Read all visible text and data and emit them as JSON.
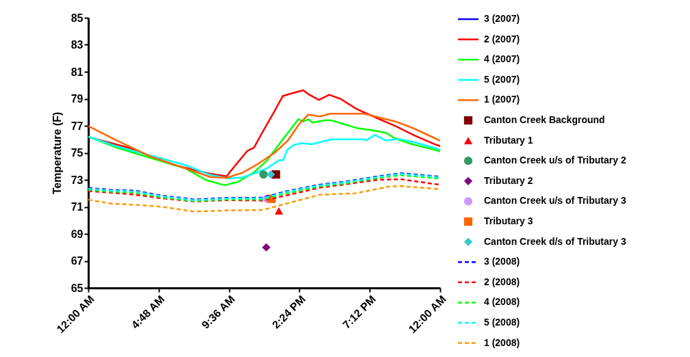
{
  "chart_data": {
    "type": "line",
    "ylabel": "Temperature (F)",
    "xlim": [
      0,
      24
    ],
    "ylim": [
      65,
      85
    ],
    "xticks": [
      {
        "value": 0,
        "label": "12:00 AM"
      },
      {
        "value": 4.8,
        "label": "4:48 AM"
      },
      {
        "value": 9.6,
        "label": "9:36 AM"
      },
      {
        "value": 14.4,
        "label": "2:24 PM"
      },
      {
        "value": 19.2,
        "label": "7:12 PM"
      },
      {
        "value": 24,
        "label": "12:00 AM"
      }
    ],
    "yticks": [
      65,
      67,
      69,
      71,
      73,
      75,
      77,
      79,
      81,
      83,
      85
    ],
    "grid": false,
    "legend": "right",
    "series": [
      {
        "name": "3 (2007)",
        "line_style": "solid",
        "color": "#0000ff"
      },
      {
        "name": "2 (2007)",
        "line_style": "solid",
        "color": "#ff0000",
        "x": [
          0,
          2.75,
          5.85,
          8.35,
          9.43,
          10.0,
          10.83,
          11.3,
          11.76,
          12.7,
          13.26,
          13.96,
          14.66,
          15.0,
          15.73,
          16.43,
          17.2,
          18.3,
          19.7,
          20.96,
          22.2,
          23.76,
          24
        ],
        "values": [
          76.17,
          75.38,
          74.1,
          73.45,
          73.27,
          74.03,
          75.13,
          75.38,
          76.3,
          78.08,
          79.2,
          79.43,
          79.63,
          79.35,
          78.92,
          79.3,
          79.0,
          78.25,
          77.57,
          76.98,
          76.31,
          75.58,
          75.5
        ]
      },
      {
        "name": "4 (2007)",
        "line_style": "solid",
        "color": "#00ff00",
        "x": [
          0,
          1.96,
          4.3,
          6.6,
          8.0,
          9.3,
          10.2,
          11.3,
          12.2,
          13.3,
          13.8,
          14.33,
          14.66,
          15.0,
          15.3,
          16.1,
          16.6,
          18.3,
          19.55,
          20.3,
          20.96,
          21.9,
          23.8,
          24
        ],
        "values": [
          76.2,
          75.38,
          74.6,
          73.86,
          73.0,
          72.6,
          72.85,
          73.55,
          74.45,
          76.05,
          76.73,
          77.49,
          77.32,
          77.49,
          77.24,
          77.4,
          77.4,
          76.84,
          76.64,
          76.48,
          76.05,
          75.7,
          75.17,
          75.1
        ]
      },
      {
        "name": "5 (2007)",
        "line_style": "solid",
        "color": "#00ffff",
        "x": [
          0,
          1.96,
          4.3,
          6.6,
          8.35,
          9.6,
          10.5,
          11.45,
          12.2,
          13.0,
          13.3,
          13.55,
          14.0,
          14.6,
          15.2,
          16.6,
          18.8,
          18.95,
          19.55,
          20.3,
          21.25,
          22.2,
          23.8,
          24
        ],
        "values": [
          76.2,
          75.47,
          74.79,
          74.1,
          73.35,
          73.1,
          73.18,
          73.52,
          73.86,
          74.45,
          74.45,
          75.2,
          75.58,
          75.72,
          75.63,
          76.0,
          76.0,
          75.93,
          76.32,
          75.92,
          76.02,
          75.8,
          75.3,
          75.2
        ]
      },
      {
        "name": "1 (2007)",
        "line_style": "solid",
        "color": "#ff6600",
        "x": [
          0,
          1.96,
          4.3,
          6.6,
          8.35,
          9.43,
          10.5,
          11.6,
          12.7,
          13.6,
          14.4,
          15.0,
          15.8,
          16.5,
          18.8,
          19.7,
          20.96,
          22.2,
          23.8,
          24
        ],
        "values": [
          76.98,
          75.9,
          74.7,
          73.86,
          73.2,
          73.15,
          73.52,
          74.2,
          75.0,
          75.9,
          77.15,
          77.83,
          77.69,
          77.9,
          77.9,
          77.66,
          77.32,
          76.81,
          76.0,
          75.9
        ]
      },
      {
        "name": "Canton Creek Background",
        "type": "scatter",
        "marker": "square",
        "color": "#800000",
        "x": [
          12.8
        ],
        "values": [
          73.4
        ]
      },
      {
        "name": "Tributary 1",
        "type": "scatter",
        "marker": "triangle",
        "color": "#ff0000",
        "x": [
          13.0
        ],
        "values": [
          70.7
        ]
      },
      {
        "name": "Canton Creek u/s of Tributary 2",
        "type": "scatter",
        "marker": "circle",
        "color": "#339966",
        "x": [
          11.95
        ],
        "values": [
          73.4
        ]
      },
      {
        "name": "Tributary 2",
        "type": "scatter",
        "marker": "diamond",
        "color": "#800080",
        "x": [
          12.14
        ],
        "values": [
          68.0
        ]
      },
      {
        "name": "Canton Creek u/s of Tributary 3",
        "type": "scatter",
        "marker": "circle",
        "color": "#cc99ff",
        "x": [
          12.2
        ],
        "values": [
          71.6
        ]
      },
      {
        "name": "Tributary 3",
        "type": "scatter",
        "marker": "square",
        "color": "#ff6600",
        "x": [
          12.5
        ],
        "values": [
          71.6
        ]
      },
      {
        "name": "Canton Creek d/s of Tributary 3",
        "type": "scatter",
        "marker": "diamond",
        "color": "#33cccc",
        "x": [
          12.45
        ],
        "values": [
          73.4
        ]
      },
      {
        "name": "3 (2008)",
        "line_style": "dashed",
        "color": "#0000ff",
        "x": [
          0,
          1.6,
          3.2,
          4.9,
          7.2,
          9.5,
          11.9,
          13.5,
          15.8,
          17.4,
          19.7,
          21.3,
          23.7,
          24
        ],
        "values": [
          72.4,
          72.25,
          72.2,
          71.85,
          71.55,
          71.67,
          71.68,
          72.15,
          72.65,
          72.85,
          73.25,
          73.49,
          73.27,
          73.25
        ]
      },
      {
        "name": "2 (2008)",
        "line_style": "dashed",
        "color": "#ff0000",
        "x": [
          0,
          1.6,
          3.2,
          4.9,
          7.2,
          9.5,
          11.9,
          13.5,
          15.8,
          17.4,
          19.7,
          21.3,
          23.7,
          24
        ],
        "values": [
          72.17,
          72.05,
          71.9,
          71.65,
          71.4,
          71.5,
          71.47,
          71.84,
          72.43,
          72.65,
          73.0,
          73.05,
          72.68,
          72.65
        ]
      },
      {
        "name": "4 (2008)",
        "line_style": "dashed",
        "color": "#00ff00",
        "x": [
          0,
          1.6,
          3.2,
          4.9,
          7.2,
          9.5,
          11.9,
          13.5,
          15.8,
          17.4,
          19.7,
          21.3,
          23.7,
          24
        ],
        "values": [
          72.25,
          72.12,
          72.05,
          71.72,
          71.43,
          71.55,
          71.55,
          72.0,
          72.52,
          72.72,
          73.12,
          73.35,
          73.12,
          73.1
        ]
      },
      {
        "name": "5 (2008)",
        "line_style": "dashed",
        "color": "#00ffff",
        "x": [
          0,
          1.6,
          3.2,
          4.9,
          7.2,
          9.5,
          11.9,
          13.5,
          15.8,
          17.4,
          19.7,
          21.3,
          23.7,
          24
        ],
        "values": [
          72.34,
          72.2,
          72.14,
          71.8,
          71.5,
          71.62,
          71.63,
          72.1,
          72.6,
          72.8,
          73.2,
          73.44,
          73.22,
          73.2
        ]
      },
      {
        "name": "1 (2008)",
        "line_style": "dashed",
        "color": "#ff9900",
        "x": [
          0,
          1.6,
          3.2,
          5.1,
          7.2,
          9.5,
          11.9,
          13.5,
          15.8,
          18.2,
          20.5,
          21.3,
          23.7,
          24
        ],
        "values": [
          71.53,
          71.24,
          71.16,
          71.0,
          70.65,
          70.74,
          70.77,
          71.24,
          71.9,
          72.0,
          72.5,
          72.54,
          72.34,
          72.3
        ]
      }
    ]
  }
}
